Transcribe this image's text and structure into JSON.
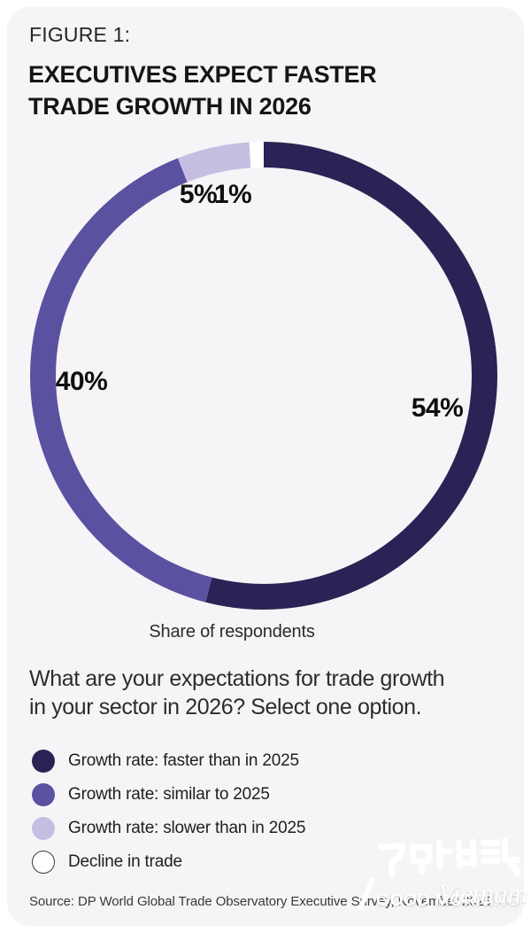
{
  "figure_label": "FIGURE 1:",
  "title": {
    "line1": "EXECUTIVES EXPECT FASTER",
    "line2": "TRADE GROWTH IN 2026"
  },
  "chart_data": {
    "type": "donut",
    "caption": "Share of respondents",
    "start_angle_deg": 0,
    "direction": "clockwise",
    "segments": [
      {
        "label": "Growth rate: faster than in 2025",
        "value_pct": 54,
        "display": "54%",
        "color": "#2a2355",
        "outlined": false
      },
      {
        "label": "Growth rate: similar to 2025",
        "value_pct": 40,
        "display": "40%",
        "color": "#5a52a0",
        "outlined": false
      },
      {
        "label": "Growth rate: slower than in 2025",
        "value_pct": 5,
        "display": "5%",
        "color": "#c6bee1",
        "outlined": false
      },
      {
        "label": "Decline in trade",
        "value_pct": 1,
        "display": "1%",
        "color": "#ffffff",
        "outlined": true
      }
    ]
  },
  "question": {
    "line1": "What are your expectations for trade growth",
    "line2": "in your sector in 2026? Select one option."
  },
  "source": "Source: DP World Global Trade Observatory Executive Survey, November 2025",
  "watermark": {
    "korean": "굿모닝베트남",
    "line1": "GOOD MORNING",
    "line2": "Vietnam"
  },
  "colors": {
    "card_bg": "#f6f4f6",
    "page_bg": "#ffffff",
    "swatch_outline": "#3c3c3c"
  }
}
